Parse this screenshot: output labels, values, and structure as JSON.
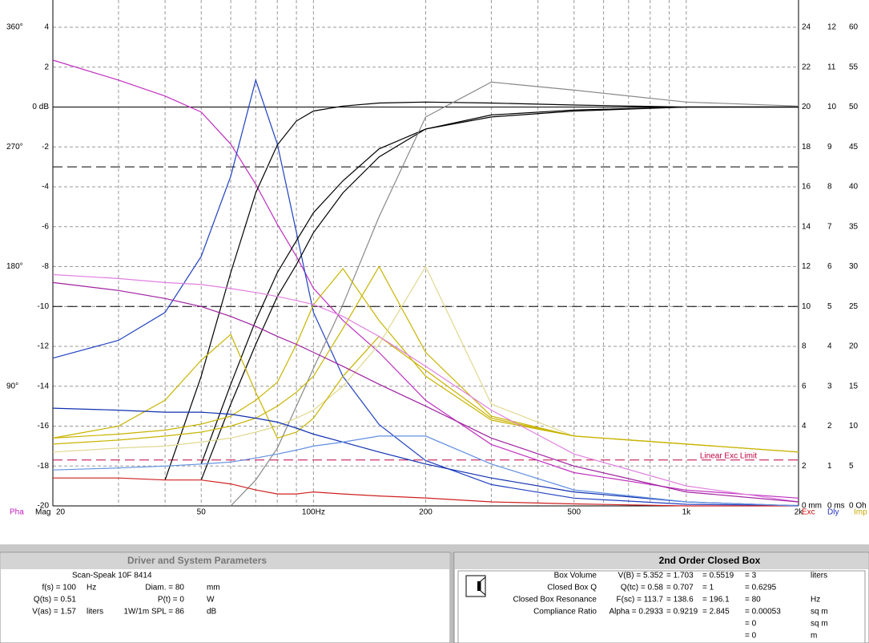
{
  "chart_data": {
    "type": "line",
    "x_scale": "log",
    "xlim": [
      20,
      2000
    ],
    "ylim": [
      -20,
      4
    ],
    "grid": true,
    "xticks": [
      {
        "value": 20,
        "label": "20"
      },
      {
        "value": 30,
        "label": null
      },
      {
        "value": 40,
        "label": null
      },
      {
        "value": 50,
        "label": "50"
      },
      {
        "value": 60,
        "label": null
      },
      {
        "value": 70,
        "label": null
      },
      {
        "value": 80,
        "label": null
      },
      {
        "value": 90,
        "label": null
      },
      {
        "value": 100,
        "label": "100Hz"
      },
      {
        "value": 200,
        "label": "200"
      },
      {
        "value": 300,
        "label": null
      },
      {
        "value": 400,
        "label": null
      },
      {
        "value": 500,
        "label": "500"
      },
      {
        "value": 600,
        "label": null
      },
      {
        "value": 700,
        "label": null
      },
      {
        "value": 800,
        "label": null
      },
      {
        "value": 900,
        "label": null
      },
      {
        "value": 1000,
        "label": "1k"
      },
      {
        "value": 2000,
        "label": "2k"
      }
    ],
    "yticks": [
      4,
      2,
      {
        "value": 0,
        "label": "0 dB"
      },
      -2,
      -4,
      -6,
      -8,
      -10,
      -12,
      -14,
      -16,
      -18,
      -20
    ],
    "phase_ticks": [
      {
        "value": 4,
        "label": "360°"
      },
      {
        "value": -2,
        "label": "270°"
      },
      {
        "value": -8,
        "label": "180°"
      },
      {
        "value": -14,
        "label": "90°"
      }
    ],
    "exc_ticks": [
      {
        "value": 4,
        "label": "24"
      },
      {
        "value": 2,
        "label": "22"
      },
      {
        "value": 0,
        "label": "20"
      },
      {
        "value": -2,
        "label": "18"
      },
      {
        "value": -4,
        "label": "16"
      },
      {
        "value": -6,
        "label": "14"
      },
      {
        "value": -8,
        "label": "12"
      },
      {
        "value": -10,
        "label": "10"
      },
      {
        "value": -12,
        "label": "8"
      },
      {
        "value": -14,
        "label": "6"
      },
      {
        "value": -16,
        "label": "4"
      },
      {
        "value": -18,
        "label": "2"
      },
      {
        "value": -20,
        "label": "0 mm"
      }
    ],
    "dly_ticks": [
      {
        "value": 4,
        "label": "12"
      },
      {
        "value": 2,
        "label": "11"
      },
      {
        "value": 0,
        "label": "10"
      },
      {
        "value": -2,
        "label": "9"
      },
      {
        "value": -4,
        "label": "8"
      },
      {
        "value": -6,
        "label": "7"
      },
      {
        "value": -8,
        "label": "6"
      },
      {
        "value": -10,
        "label": "5"
      },
      {
        "value": -12,
        "label": "4"
      },
      {
        "value": -14,
        "label": "3"
      },
      {
        "value": -16,
        "label": "2"
      },
      {
        "value": -18,
        "label": "1"
      },
      {
        "value": -20,
        "label": "0 ms"
      }
    ],
    "imp_ticks": [
      {
        "value": 4,
        "label": "60"
      },
      {
        "value": 2,
        "label": "55"
      },
      {
        "value": 0,
        "label": "50"
      },
      {
        "value": -2,
        "label": "45"
      },
      {
        "value": -4,
        "label": "40"
      },
      {
        "value": -6,
        "label": "35"
      },
      {
        "value": -8,
        "label": "30"
      },
      {
        "value": -10,
        "label": "25"
      },
      {
        "value": -12,
        "label": "20"
      },
      {
        "value": -14,
        "label": "15"
      },
      {
        "value": -16,
        "label": "10"
      },
      {
        "value": -18,
        "label": "5"
      },
      {
        "value": -20,
        "label": "0 Oh"
      }
    ],
    "axis_labels": [
      {
        "label": "Pha",
        "color": "#c020c0"
      },
      {
        "label": "Mag",
        "color": "#000000"
      },
      {
        "label": "Exc",
        "color": "#d01010"
      },
      {
        "label": "Dly",
        "color": "#2030c0"
      },
      {
        "label": "Imp",
        "color": "#c8a800"
      }
    ],
    "reference_lines": [
      {
        "value": 0,
        "color": "#000000"
      },
      {
        "value": -3,
        "color": "#000000",
        "dash": true
      },
      {
        "value": -10,
        "color": "#000000",
        "dash": true
      },
      {
        "value": -17.7,
        "color": "#c00040",
        "dash": true,
        "label": "Linear Exc Limit"
      }
    ],
    "x": [
      20,
      30,
      40,
      50,
      60,
      70,
      80,
      90,
      100,
      120,
      150,
      200,
      300,
      500,
      1000,
      2000
    ],
    "series": [
      {
        "color": "#c030c0",
        "values": [
          2.35,
          1.35,
          0.55,
          -0.25,
          -1.86,
          -3.87,
          -5.88,
          -7.49,
          -9.09,
          -10.7,
          -12.3,
          -14.71,
          -16.92,
          -18.33,
          -19.21,
          -19.61
        ]
      },
      {
        "color": "#2040c0",
        "values": [
          -12.59,
          -11.7,
          -10.3,
          -7.49,
          -3.47,
          1.35,
          -1.86,
          -6.28,
          -10.3,
          -13.51,
          -15.92,
          -17.73,
          -18.93,
          -19.61,
          -19.92,
          -19.98
        ]
      },
      {
        "color": "#000000",
        "values": [
          null,
          null,
          -18.7,
          -13.5,
          -8.3,
          -4.3,
          -1.9,
          -0.7,
          -0.2,
          0.05,
          0.2,
          0.25,
          0.2,
          0.1,
          0,
          0
        ]
      },
      {
        "color": "#000000",
        "values": [
          null,
          null,
          null,
          -17.9,
          -13.9,
          -10.7,
          -8.3,
          -6.7,
          -5.3,
          -3.7,
          -2.1,
          -1.1,
          -0.5,
          -0.2,
          0,
          0
        ]
      },
      {
        "color": "#000000",
        "values": [
          null,
          null,
          null,
          -18.7,
          -14.9,
          -11.9,
          -9.5,
          -7.9,
          -6.3,
          -4.3,
          -2.5,
          -1.1,
          -0.4,
          -0.15,
          0,
          0
        ]
      },
      {
        "color": "#888888",
        "values": [
          null,
          null,
          null,
          null,
          -20,
          -18.7,
          -17.1,
          -15.0,
          -13.1,
          -9.9,
          -5.5,
          -0.5,
          1.25,
          0.85,
          0.25,
          0.05
        ]
      },
      {
        "color": "#c8b400",
        "values": [
          -16.6,
          -16.4,
          -16.2,
          -15.9,
          -15.5,
          -14.7,
          -13.8,
          -11.9,
          -9.9,
          -8.1,
          -10.7,
          -13.5,
          -15.7,
          -16.5,
          -16.9,
          -17.3
        ]
      },
      {
        "color": "#c8b400",
        "values": [
          -16.9,
          -16.7,
          -16.5,
          -16.3,
          -16,
          -15.6,
          -15,
          -14.3,
          -13.5,
          -11.1,
          -8.0,
          -12.3,
          -15.5,
          -16.5,
          -16.9,
          -17.3
        ]
      },
      {
        "color": "#e0d890",
        "values": [
          -17.3,
          -17.1,
          -17,
          -16.8,
          -16.6,
          -16.3,
          -16,
          -15.6,
          -15.2,
          -14,
          -11.9,
          -8.0,
          -14.9,
          -16.5,
          -16.9,
          -17.3
        ]
      },
      {
        "color": "#c8b400",
        "values": [
          -16.6,
          -16.0,
          -14.7,
          -12.7,
          -11.4,
          -14.3,
          -16.6,
          -16.3,
          -15.6,
          -13.5,
          -11.5,
          -13.2,
          -15.6,
          -16.5,
          -16.9,
          -17.3
        ]
      },
      {
        "color": "#d02020",
        "values": [
          -18.6,
          -18.6,
          -18.7,
          -18.7,
          -18.9,
          -19.2,
          -19.4,
          -19.4,
          -19.3,
          -19.4,
          -19.5,
          -19.6,
          -19.8,
          -19.9,
          -20,
          -20
        ]
      },
      {
        "color": "#e080e0",
        "values": [
          -8.4,
          -8.6,
          -8.8,
          -8.9,
          -9.1,
          -9.3,
          -9.5,
          -9.7,
          -9.9,
          -10.5,
          -11.5,
          -13,
          -15.2,
          -17.4,
          -19,
          -19.8
        ]
      },
      {
        "color": "#a020a0",
        "values": [
          -8.8,
          -9.2,
          -9.6,
          -10,
          -10.5,
          -11,
          -11.5,
          -11.9,
          -12.3,
          -13,
          -13.9,
          -15,
          -16.6,
          -18,
          -19.3,
          -19.8
        ]
      },
      {
        "color": "#1030b0",
        "values": [
          -15.1,
          -15.2,
          -15.3,
          -15.3,
          -15.4,
          -15.6,
          -15.8,
          -16.1,
          -16.4,
          -16.8,
          -17.3,
          -17.9,
          -18.6,
          -19.3,
          -19.8,
          -20
        ]
      },
      {
        "color": "#6090e0",
        "values": [
          -18.2,
          -18.1,
          -18.0,
          -17.9,
          -17.8,
          -17.6,
          -17.4,
          -17.2,
          -17.0,
          -16.8,
          -16.5,
          -16.5,
          -17.9,
          -19.2,
          -19.8,
          -20
        ]
      }
    ]
  },
  "driver_panel": {
    "title": "Driver and System Parameters",
    "driver": "Scan-Speak  10F 8414",
    "rows": [
      {
        "left": "f(s) = 100",
        "left_unit": "Hz",
        "right": "Diam. = 80",
        "right_unit": "mm"
      },
      {
        "left": "Q(ts) = 0.51",
        "right": "P(t) = 0",
        "right_unit": "W"
      },
      {
        "left": "V(as) = 1.57",
        "left_unit": "liters",
        "right": "1W/1m SPL = 86",
        "right_unit": "dB"
      }
    ]
  },
  "box_panel": {
    "title": "2nd Order Closed Box",
    "rows": [
      {
        "label": "Box Volume",
        "cells": [
          "V(B) = 5.352",
          "= 1.703",
          "= 0.5519",
          "= 3"
        ],
        "unit": "liters"
      },
      {
        "label": "Closed Box Q",
        "cells": [
          "Q(tc) = 0.58",
          "= 0.707",
          "= 1",
          "= 0.6295"
        ]
      },
      {
        "label": "Closed Box Resonance",
        "cells": [
          "F(sc) = 113.7",
          "= 138.6",
          "= 196.1",
          "= 80"
        ],
        "unit": "Hz"
      },
      {
        "label": "Compliance Ratio",
        "cells": [
          "Alpha = 0.2933",
          "= 0.9219",
          "= 2.845",
          "= 0.00053"
        ],
        "unit": "sq m"
      },
      {
        "cells": [
          "= 0"
        ],
        "unit": "sq m"
      },
      {
        "cells": [
          "= 0"
        ],
        "unit": "m"
      }
    ]
  }
}
